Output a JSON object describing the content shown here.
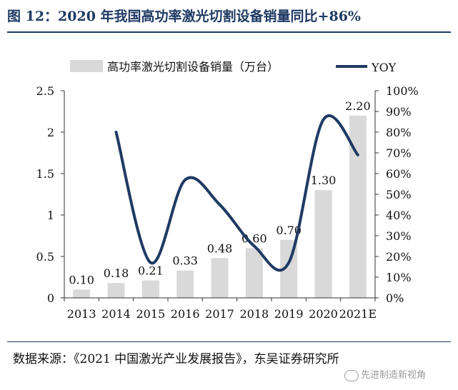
{
  "header": {
    "title": "图 12：2020 年我国高功率激光切割设备销量同比+86%"
  },
  "footer": {
    "source": "数据来源：《2021 中国激光产业发展报告》，东吴证券研究所",
    "watermark": "先进制造新视角"
  },
  "colors": {
    "title": "#1f3a63",
    "bar": "#d9d9d9",
    "line": "#1f3a63",
    "axis": "#333333"
  },
  "chart_data": {
    "type": "bar",
    "title": "",
    "categories": [
      "2013",
      "2014",
      "2015",
      "2016",
      "2017",
      "2018",
      "2019",
      "2020",
      "2021E"
    ],
    "legend_position": "top",
    "grid": false,
    "series": [
      {
        "name": "高功率激光切割设备销量（万台）",
        "type": "bar",
        "axis": "left",
        "values": [
          0.1,
          0.18,
          0.21,
          0.33,
          0.48,
          0.6,
          0.7,
          1.3,
          2.2
        ],
        "labels": [
          "0.10",
          "0.18",
          "0.21",
          "0.33",
          "0.48",
          "0.60",
          "0.70",
          "1.30",
          "2.20"
        ]
      },
      {
        "name": "YOY",
        "type": "line",
        "axis": "right",
        "values": [
          null,
          0.8,
          0.17,
          0.57,
          0.45,
          0.25,
          0.17,
          0.86,
          0.69
        ]
      }
    ],
    "y_left": {
      "ylim": [
        0,
        2.5
      ],
      "ticks": [
        "0",
        "0.5",
        "1",
        "1.5",
        "2",
        "2.5"
      ]
    },
    "y_right": {
      "ylim": [
        0,
        1.0
      ],
      "ticks": [
        "0%",
        "10%",
        "20%",
        "30%",
        "40%",
        "50%",
        "60%",
        "70%",
        "80%",
        "90%",
        "100%"
      ]
    }
  }
}
